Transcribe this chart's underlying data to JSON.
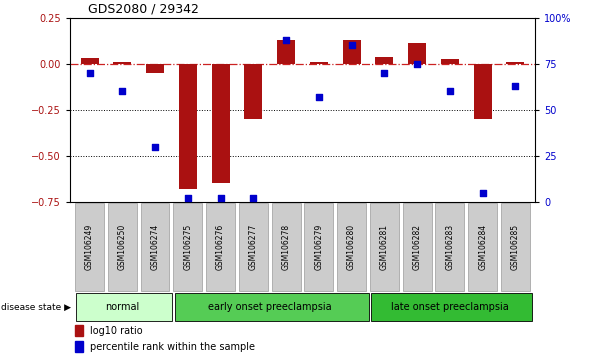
{
  "title": "GDS2080 / 29342",
  "samples": [
    "GSM106249",
    "GSM106250",
    "GSM106274",
    "GSM106275",
    "GSM106276",
    "GSM106277",
    "GSM106278",
    "GSM106279",
    "GSM106280",
    "GSM106281",
    "GSM106282",
    "GSM106283",
    "GSM106284",
    "GSM106285"
  ],
  "log10_ratio": [
    0.03,
    0.01,
    -0.05,
    -0.68,
    -0.65,
    -0.3,
    0.13,
    0.01,
    0.13,
    0.035,
    0.11,
    0.025,
    -0.3,
    0.01
  ],
  "percentile_rank": [
    70,
    60,
    30,
    2,
    2,
    2,
    88,
    57,
    85,
    70,
    75,
    60,
    5,
    63
  ],
  "groups": [
    {
      "label": "normal",
      "start": 0,
      "end": 3,
      "color": "#ccffcc"
    },
    {
      "label": "early onset preeclampsia",
      "start": 3,
      "end": 9,
      "color": "#55cc55"
    },
    {
      "label": "late onset preeclampsia",
      "start": 9,
      "end": 14,
      "color": "#33bb33"
    }
  ],
  "ylim_left": [
    -0.75,
    0.25
  ],
  "ylim_right": [
    0,
    100
  ],
  "yticks_left": [
    -0.75,
    -0.5,
    -0.25,
    0.0,
    0.25
  ],
  "yticks_right": [
    0,
    25,
    50,
    75,
    100
  ],
  "bar_color": "#aa1111",
  "dot_color": "#0000cc",
  "hline_color": "#cc2222",
  "hline_y": 0.0,
  "dotted_hlines": [
    -0.25,
    -0.5
  ],
  "background_color": "#ffffff",
  "bar_width": 0.55,
  "dot_size": 18,
  "sample_box_color": "#cccccc",
  "title_fontsize": 9,
  "tick_fontsize": 7,
  "sample_fontsize": 5.5,
  "group_fontsize": 7,
  "legend_fontsize": 7
}
